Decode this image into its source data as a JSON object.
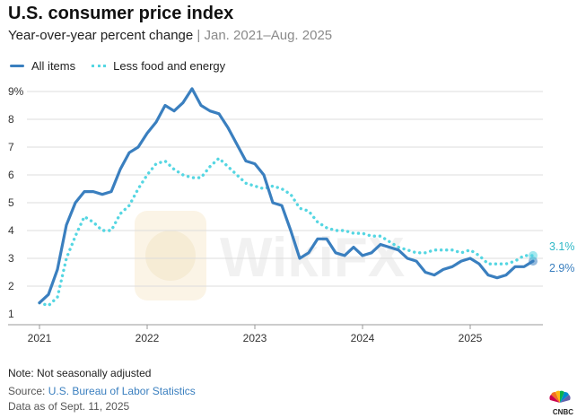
{
  "header": {
    "title": "U.S. consumer price index",
    "subtitle_main": "Year-over-year percent change",
    "subtitle_sep": "|",
    "subtitle_range": "Jan. 2021–Aug. 2025"
  },
  "legend": {
    "items": [
      {
        "label": "All items",
        "style": "solid",
        "color": "#3a7fbf"
      },
      {
        "label": "Less food and energy",
        "style": "dotted",
        "color": "#55d6e2"
      }
    ]
  },
  "chart_data": {
    "type": "line",
    "xlabel": "",
    "ylabel": "",
    "ylim": [
      1,
      9
    ],
    "yticks": [
      "1",
      "2",
      "3",
      "4",
      "5",
      "6",
      "7",
      "8",
      "9%"
    ],
    "xticks": [
      "2021",
      "2022",
      "2023",
      "2024",
      "2025"
    ],
    "x_start": "2021-01",
    "grid": "horizontal",
    "series": [
      {
        "name": "All items",
        "style": "solid",
        "color": "#3a7fbf",
        "end_label": "2.9%",
        "values": [
          1.4,
          1.7,
          2.6,
          4.2,
          5.0,
          5.4,
          5.4,
          5.3,
          5.4,
          6.2,
          6.8,
          7.0,
          7.5,
          7.9,
          8.5,
          8.3,
          8.6,
          9.1,
          8.5,
          8.3,
          8.2,
          7.7,
          7.1,
          6.5,
          6.4,
          6.0,
          5.0,
          4.9,
          4.0,
          3.0,
          3.2,
          3.7,
          3.7,
          3.2,
          3.1,
          3.4,
          3.1,
          3.2,
          3.5,
          3.4,
          3.3,
          3.0,
          2.9,
          2.5,
          2.4,
          2.6,
          2.7,
          2.9,
          3.0,
          2.8,
          2.4,
          2.3,
          2.4,
          2.7,
          2.7,
          2.9
        ]
      },
      {
        "name": "Less food and energy",
        "style": "dotted",
        "color": "#55d6e2",
        "end_label": "3.1%",
        "values": [
          1.4,
          1.3,
          1.6,
          3.0,
          3.8,
          4.5,
          4.3,
          4.0,
          4.0,
          4.6,
          4.9,
          5.5,
          6.0,
          6.4,
          6.5,
          6.2,
          6.0,
          5.9,
          5.9,
          6.3,
          6.6,
          6.3,
          6.0,
          5.7,
          5.6,
          5.5,
          5.6,
          5.5,
          5.3,
          4.8,
          4.7,
          4.3,
          4.1,
          4.0,
          4.0,
          3.9,
          3.9,
          3.8,
          3.8,
          3.6,
          3.4,
          3.3,
          3.2,
          3.2,
          3.3,
          3.3,
          3.3,
          3.2,
          3.3,
          3.1,
          2.8,
          2.8,
          2.8,
          2.9,
          3.1,
          3.1
        ]
      }
    ]
  },
  "footer": {
    "note": "Note: Not seasonally adjusted",
    "source_prefix": "Source: ",
    "source_link": "U.S. Bureau of Labor Statistics",
    "as_of": "Data as of Sept. 11, 2025"
  },
  "brand": {
    "logo_text": "CNBC",
    "watermark_text": "WikiFX"
  }
}
